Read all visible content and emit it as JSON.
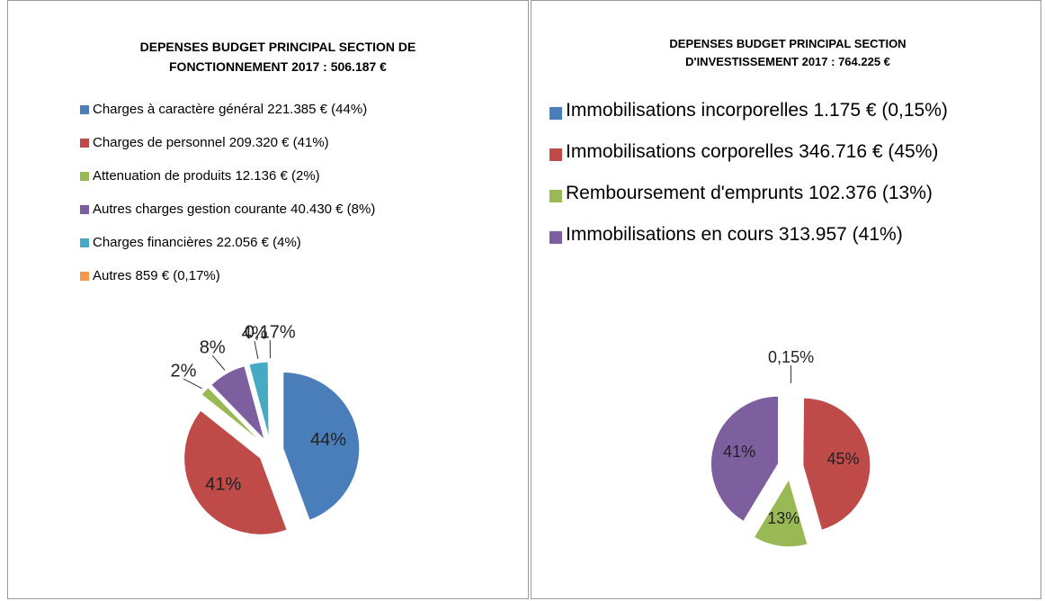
{
  "chart_data": [
    {
      "type": "pie",
      "title": "DEPENSES BUDGET PRINCIPAL SECTION DE FONCTIONNEMENT 2017 : 506.187 €",
      "categories": [
        "Charges à caractère général 221.385 € (44%)",
        "Charges de personnel 209.320 € (41%)",
        "Attenuation de produits 12.136 € (2%)",
        "Autres charges gestion courante 40.430 € (8%)",
        "Charges financières 22.056 € (4%)",
        "Autres 859 € (0,17%)"
      ],
      "values": [
        44,
        41,
        2,
        8,
        4,
        0.17
      ],
      "value_labels": [
        "44%",
        "41%",
        "2%",
        "8%",
        "4%",
        "0,17%"
      ],
      "colors": [
        "#4a7ebb",
        "#be4b48",
        "#98b954",
        "#7d5fa0",
        "#46aac5",
        "#f79646"
      ]
    },
    {
      "type": "pie",
      "title": "DEPENSES BUDGET PRINCIPAL SECTION D'INVESTISSEMENT 2017 : 764.225 €",
      "categories": [
        "Immobilisations incorporelles 1.175 € (0,15%)",
        "Immobilisations corporelles 346.716 € (45%)",
        "Remboursement d'emprunts 102.376 (13%)",
        "Immobilisations en cours  313.957 (41%)"
      ],
      "values": [
        0.15,
        45,
        13,
        41
      ],
      "value_labels": [
        "0,15%",
        "45%",
        "13%",
        "41%"
      ],
      "colors": [
        "#4a7ebb",
        "#be4b48",
        "#98b954",
        "#7d5fa0"
      ]
    }
  ]
}
